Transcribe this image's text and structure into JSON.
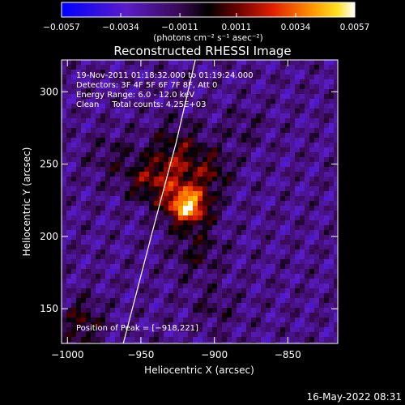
{
  "chart_data": {
    "type": "heatmap",
    "title": "Reconstructed RHESSI Image",
    "xlabel": "Heliocentric X (arcsec)",
    "ylabel": "Heliocentric Y (arcsec)",
    "xlim": [
      -1004,
      -816
    ],
    "ylim": [
      126,
      322
    ],
    "x_ticks": [
      -1000,
      -950,
      -900,
      -850
    ],
    "x_tick_labels": [
      "−1000",
      "−950",
      "−900",
      "−850"
    ],
    "y_ticks": [
      150,
      200,
      250,
      300
    ],
    "y_tick_labels": [
      "150",
      "200",
      "250",
      "300"
    ],
    "colorbar": {
      "range": [
        -0.0057,
        0.0057
      ],
      "ticks": [
        -0.0057,
        -0.0034,
        -0.0011,
        0.0011,
        0.0034,
        0.0057
      ],
      "tick_labels": [
        "−0.0057",
        "−0.0034",
        "−0.0011",
        "0.0011",
        "0.0034",
        "0.0057"
      ],
      "unit_label": "(photons cm⁻² s⁻¹ asec⁻²)"
    },
    "annotations": [
      "19-Nov-2011 01:18:32.000 to 01:19:24.000",
      "Detectors: 3F 4F 5F 6F 7F 8F, Att 0",
      "Energy Range: 6.0 - 12.0 keV",
      "Clean     Total counts: 4.25E+03"
    ],
    "peak_label": "Position of Peak = [−918,221]",
    "peak": {
      "x": -918,
      "y": 221
    },
    "limb_curve": [
      {
        "x": -962,
        "y": 126
      },
      {
        "x": -943,
        "y": 200
      },
      {
        "x": -926,
        "y": 265
      },
      {
        "x": -913,
        "y": 322
      }
    ],
    "sources": [
      {
        "x": -918,
        "y": 221,
        "sx": 10,
        "sy": 9,
        "amp": 0.0062
      },
      {
        "x": -925,
        "y": 250,
        "sx": 14,
        "sy": 18,
        "amp": 0.003
      },
      {
        "x": -945,
        "y": 238,
        "sx": 11,
        "sy": 10,
        "amp": 0.0022
      },
      {
        "x": -900,
        "y": 245,
        "sx": 9,
        "sy": 10,
        "amp": 0.0018
      },
      {
        "x": -912,
        "y": 190,
        "sx": 12,
        "sy": 12,
        "amp": 0.0016
      },
      {
        "x": -990,
        "y": 140,
        "sx": 10,
        "sy": 12,
        "amp": 0.0022
      },
      {
        "x": -900,
        "y": 150,
        "sx": 12,
        "sy": 10,
        "amp": 0.001
      },
      {
        "x": -970,
        "y": 255,
        "sx": 12,
        "sy": 12,
        "amp": 0.0011
      },
      {
        "x": -880,
        "y": 275,
        "sx": 10,
        "sy": 10,
        "amp": 0.0009
      }
    ]
  },
  "footer": {
    "timestamp": "16-May-2022 08:31"
  }
}
